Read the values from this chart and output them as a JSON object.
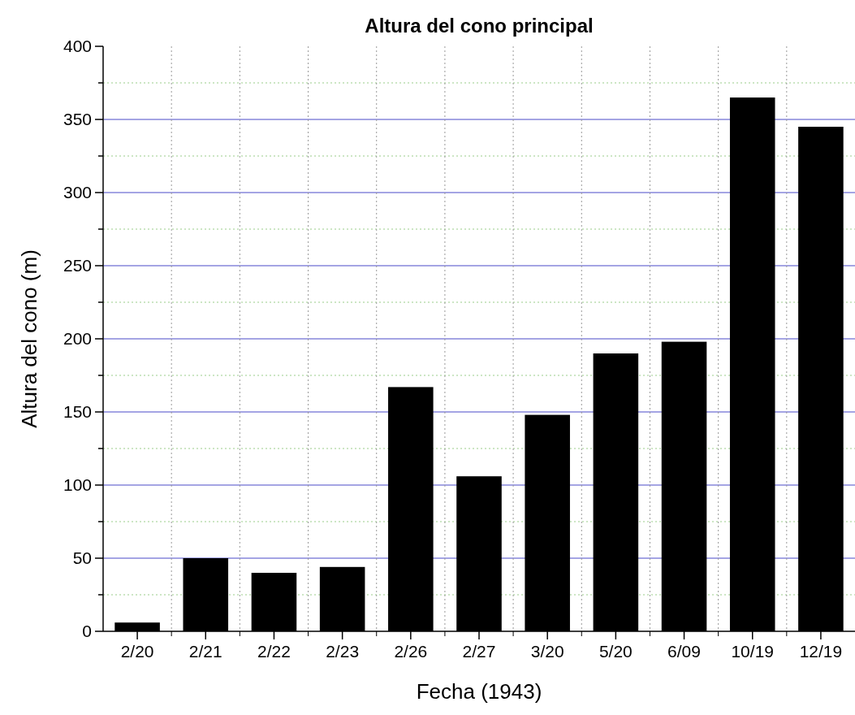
{
  "chart_data": {
    "type": "bar",
    "title": "Altura del cono principal",
    "xlabel": "Fecha (1943)",
    "ylabel": "Altura del cono (m)",
    "categories": [
      "2/20",
      "2/21",
      "2/22",
      "2/23",
      "2/26",
      "2/27",
      "3/20",
      "5/20",
      "6/09",
      "10/19",
      "12/19"
    ],
    "values": [
      6,
      50,
      40,
      44,
      167,
      106,
      148,
      190,
      198,
      365,
      345
    ],
    "color": "#000000",
    "ylim": [
      0,
      400
    ],
    "yticks": [
      0,
      {
        "value": 25,
        "label": null
      },
      50,
      {
        "value": 75,
        "label": null
      },
      100,
      {
        "value": 125,
        "label": null
      },
      150,
      {
        "value": 175,
        "label": null
      },
      200,
      {
        "value": 225,
        "label": null
      },
      250,
      {
        "value": 275,
        "label": null
      },
      300,
      {
        "value": 325,
        "label": null
      },
      350,
      {
        "value": 375,
        "label": null
      },
      400
    ],
    "grid": true
  }
}
